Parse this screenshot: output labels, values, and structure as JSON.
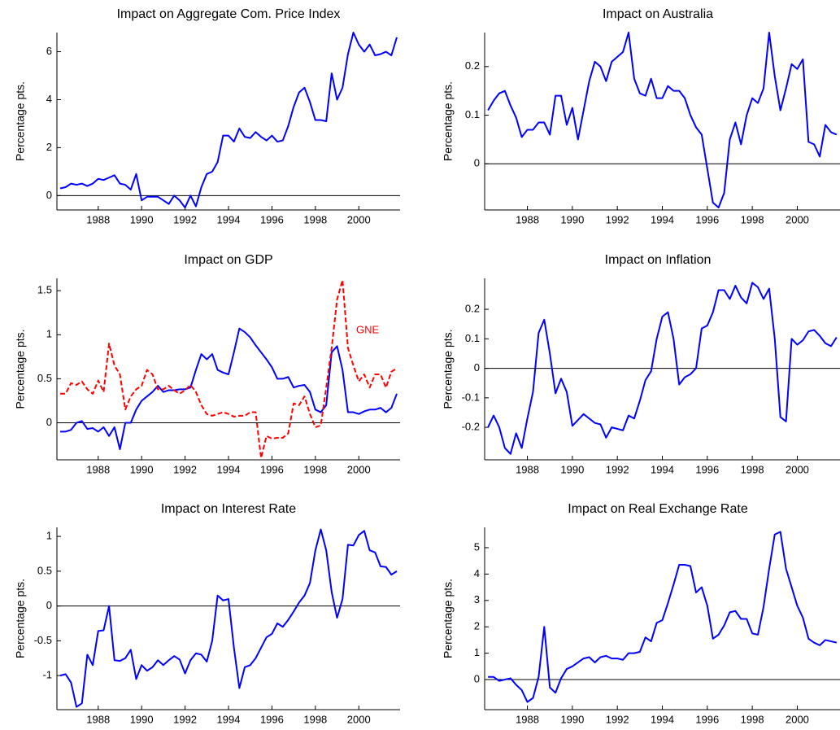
{
  "chart_data": [
    {
      "type": "line",
      "title": "Impact on Aggregate Com. Price Index",
      "ylabel": "Percentage pts.",
      "x": [
        1986.25,
        1986.5,
        1986.75,
        1987,
        1987.25,
        1987.5,
        1987.75,
        1988,
        1988.25,
        1988.5,
        1988.75,
        1989,
        1989.25,
        1989.5,
        1989.75,
        1990,
        1990.25,
        1990.5,
        1990.75,
        1991,
        1991.25,
        1991.5,
        1991.75,
        1992,
        1992.25,
        1992.5,
        1992.75,
        1993,
        1993.25,
        1993.5,
        1993.75,
        1994,
        1994.25,
        1994.5,
        1994.75,
        1995,
        1995.25,
        1995.5,
        1995.75,
        1996,
        1996.25,
        1996.5,
        1996.75,
        1997,
        1997.25,
        1997.5,
        1997.75,
        1998,
        1998.25,
        1998.5,
        1998.75,
        1999,
        1999.25,
        1999.5,
        1999.75,
        2000,
        2000.25,
        2000.5,
        2000.75,
        2001,
        2001.25,
        2001.5,
        2001.75
      ],
      "series": [
        {
          "color": "#0000ff",
          "line_style": "solid",
          "values": [
            0.3,
            0.35,
            0.5,
            0.45,
            0.5,
            0.4,
            0.5,
            0.7,
            0.65,
            0.75,
            0.85,
            0.5,
            0.45,
            0.25,
            0.9,
            -0.2,
            -0.05,
            -0.05,
            -0.05,
            -0.2,
            -0.35,
            0,
            -0.2,
            -0.5,
            0,
            -0.45,
            0.35,
            0.9,
            1.0,
            1.4,
            2.5,
            2.5,
            2.25,
            2.8,
            2.45,
            2.4,
            2.65,
            2.45,
            2.3,
            2.5,
            2.25,
            2.3,
            2.9,
            3.7,
            4.3,
            4.5,
            3.9,
            3.15,
            3.15,
            3.1,
            5.1,
            4.0,
            4.5,
            5.9,
            6.8,
            6.3,
            6.0,
            6.3,
            5.85,
            5.9,
            6.0,
            5.85,
            6.6
          ]
        }
      ],
      "xlim": [
        1986.1,
        2001.9
      ],
      "ylim": [
        -0.6,
        6.8
      ],
      "xticks": [
        1988,
        1990,
        1992,
        1994,
        1996,
        1998,
        2000
      ],
      "yticks": [
        0,
        2,
        4,
        6
      ]
    },
    {
      "type": "line",
      "title": "Impact on Australia",
      "ylabel": "Percentage pts.",
      "x": [
        1986.25,
        1986.5,
        1986.75,
        1987,
        1987.25,
        1987.5,
        1987.75,
        1988,
        1988.25,
        1988.5,
        1988.75,
        1989,
        1989.25,
        1989.5,
        1989.75,
        1990,
        1990.25,
        1990.5,
        1990.75,
        1991,
        1991.25,
        1991.5,
        1991.75,
        1992,
        1992.25,
        1992.5,
        1992.75,
        1993,
        1993.25,
        1993.5,
        1993.75,
        1994,
        1994.25,
        1994.5,
        1994.75,
        1995,
        1995.25,
        1995.5,
        1995.75,
        1996,
        1996.25,
        1996.5,
        1996.75,
        1997,
        1997.25,
        1997.5,
        1997.75,
        1998,
        1998.25,
        1998.5,
        1998.75,
        1999,
        1999.25,
        1999.5,
        1999.75,
        2000,
        2000.25,
        2000.5,
        2000.75,
        2001,
        2001.25,
        2001.5,
        2001.75
      ],
      "series": [
        {
          "color": "#0000ff",
          "line_style": "solid",
          "values": [
            0.11,
            0.13,
            0.145,
            0.15,
            0.12,
            0.095,
            0.055,
            0.07,
            0.07,
            0.085,
            0.085,
            0.06,
            0.14,
            0.14,
            0.08,
            0.115,
            0.05,
            0.11,
            0.17,
            0.21,
            0.2,
            0.17,
            0.21,
            0.22,
            0.23,
            0.27,
            0.175,
            0.145,
            0.14,
            0.175,
            0.135,
            0.135,
            0.16,
            0.15,
            0.15,
            0.135,
            0.1,
            0.075,
            0.06,
            -0.01,
            -0.08,
            -0.09,
            -0.06,
            0.05,
            0.085,
            0.04,
            0.1,
            0.135,
            0.125,
            0.155,
            0.27,
            0.18,
            0.11,
            0.155,
            0.205,
            0.195,
            0.215,
            0.045,
            0.04,
            0.015,
            0.08,
            0.065,
            0.06
          ]
        }
      ],
      "xlim": [
        1986.1,
        2001.9
      ],
      "ylim": [
        -0.095,
        0.27
      ],
      "xticks": [
        1988,
        1990,
        1992,
        1994,
        1996,
        1998,
        2000
      ],
      "yticks": [
        0,
        0.1,
        0.2
      ]
    },
    {
      "type": "line",
      "title": "Impact on GDP",
      "ylabel": "Percentage pts.",
      "x": [
        1986.25,
        1986.5,
        1986.75,
        1987,
        1987.25,
        1987.5,
        1987.75,
        1988,
        1988.25,
        1988.5,
        1988.75,
        1989,
        1989.25,
        1989.5,
        1989.75,
        1990,
        1990.25,
        1990.5,
        1990.75,
        1991,
        1991.25,
        1991.5,
        1991.75,
        1992,
        1992.25,
        1992.5,
        1992.75,
        1993,
        1993.25,
        1993.5,
        1993.75,
        1994,
        1994.25,
        1994.5,
        1994.75,
        1995,
        1995.25,
        1995.5,
        1995.75,
        1996,
        1996.25,
        1996.5,
        1996.75,
        1997,
        1997.25,
        1997.5,
        1997.75,
        1998,
        1998.25,
        1998.5,
        1998.75,
        1999,
        1999.25,
        1999.5,
        1999.75,
        2000,
        2000.25,
        2000.5,
        2000.75,
        2001,
        2001.25,
        2001.5,
        2001.75
      ],
      "series": [
        {
          "color": "#0000ff",
          "line_style": "solid",
          "values": [
            -0.1,
            -0.1,
            -0.08,
            0.0,
            0.02,
            -0.07,
            -0.06,
            -0.1,
            -0.05,
            -0.15,
            -0.05,
            -0.3,
            0.0,
            0.0,
            0.15,
            0.25,
            0.3,
            0.35,
            0.42,
            0.35,
            0.37,
            0.37,
            0.38,
            0.38,
            0.4,
            0.6,
            0.78,
            0.72,
            0.78,
            0.6,
            0.57,
            0.55,
            0.8,
            1.07,
            1.03,
            0.97,
            0.88,
            0.8,
            0.72,
            0.63,
            0.5,
            0.5,
            0.52,
            0.4,
            0.42,
            0.43,
            0.35,
            0.15,
            0.12,
            0.2,
            0.8,
            0.87,
            0.6,
            0.12,
            0.12,
            0.1,
            0.13,
            0.15,
            0.15,
            0.17,
            0.12,
            0.17,
            0.33
          ]
        },
        {
          "name": "GNE",
          "color": "#ff0000",
          "line_style": "dashed",
          "values": [
            0.33,
            0.33,
            0.45,
            0.43,
            0.47,
            0.38,
            0.33,
            0.48,
            0.35,
            0.9,
            0.65,
            0.55,
            0.15,
            0.3,
            0.38,
            0.42,
            0.6,
            0.55,
            0.38,
            0.38,
            0.42,
            0.37,
            0.33,
            0.37,
            0.43,
            0.35,
            0.2,
            0.1,
            0.08,
            0.1,
            0.12,
            0.1,
            0.07,
            0.08,
            0.08,
            0.12,
            0.12,
            -0.4,
            -0.15,
            -0.18,
            -0.17,
            -0.17,
            -0.12,
            0.22,
            0.2,
            0.3,
            0.1,
            -0.05,
            -0.03,
            0.4,
            0.85,
            1.4,
            1.62,
            0.85,
            0.65,
            0.47,
            0.55,
            0.4,
            0.55,
            0.55,
            0.4,
            0.58,
            0.62
          ]
        }
      ],
      "xlim": [
        1986.1,
        2001.9
      ],
      "ylim": [
        -0.42,
        1.64
      ],
      "xticks": [
        1988,
        1990,
        1992,
        1994,
        1996,
        1998,
        2000
      ],
      "yticks": [
        0,
        0.5,
        1,
        1.5
      ]
    },
    {
      "type": "line",
      "title": "Impact on Inflation",
      "ylabel": "Percentage pts.",
      "x": [
        1986.25,
        1986.5,
        1986.75,
        1987,
        1987.25,
        1987.5,
        1987.75,
        1988,
        1988.25,
        1988.5,
        1988.75,
        1989,
        1989.25,
        1989.5,
        1989.75,
        1990,
        1990.25,
        1990.5,
        1990.75,
        1991,
        1991.25,
        1991.5,
        1991.75,
        1992,
        1992.25,
        1992.5,
        1992.75,
        1993,
        1993.25,
        1993.5,
        1993.75,
        1994,
        1994.25,
        1994.5,
        1994.75,
        1995,
        1995.25,
        1995.5,
        1995.75,
        1996,
        1996.25,
        1996.5,
        1996.75,
        1997,
        1997.25,
        1997.5,
        1997.75,
        1998,
        1998.25,
        1998.5,
        1998.75,
        1999,
        1999.25,
        1999.5,
        1999.75,
        2000,
        2000.25,
        2000.5,
        2000.75,
        2001,
        2001.25,
        2001.5,
        2001.75
      ],
      "series": [
        {
          "color": "#0000ff",
          "line_style": "solid",
          "values": [
            -0.2,
            -0.16,
            -0.2,
            -0.27,
            -0.29,
            -0.22,
            -0.27,
            -0.17,
            -0.08,
            0.12,
            0.165,
            0.05,
            -0.085,
            -0.035,
            -0.08,
            -0.195,
            -0.175,
            -0.155,
            -0.17,
            -0.185,
            -0.19,
            -0.235,
            -0.2,
            -0.205,
            -0.21,
            -0.16,
            -0.17,
            -0.11,
            -0.04,
            -0.01,
            0.1,
            0.175,
            0.19,
            0.1,
            -0.055,
            -0.03,
            -0.02,
            0.0,
            0.135,
            0.145,
            0.19,
            0.265,
            0.265,
            0.235,
            0.28,
            0.24,
            0.22,
            0.29,
            0.275,
            0.235,
            0.27,
            0.1,
            -0.165,
            -0.18,
            0.1,
            0.08,
            0.095,
            0.125,
            0.13,
            0.11,
            0.085,
            0.075,
            0.105
          ]
        }
      ],
      "xlim": [
        1986.1,
        2001.9
      ],
      "ylim": [
        -0.31,
        0.305
      ],
      "xticks": [
        1988,
        1990,
        1992,
        1994,
        1996,
        1998,
        2000
      ],
      "yticks": [
        -0.2,
        -0.1,
        0,
        0.1,
        0.2
      ]
    },
    {
      "type": "line",
      "title": "Impact on Interest Rate",
      "ylabel": "Percentage pts.",
      "x": [
        1986.25,
        1986.5,
        1986.75,
        1987,
        1987.25,
        1987.5,
        1987.75,
        1988,
        1988.25,
        1988.5,
        1988.75,
        1989,
        1989.25,
        1989.5,
        1989.75,
        1990,
        1990.25,
        1990.5,
        1990.75,
        1991,
        1991.25,
        1991.5,
        1991.75,
        1992,
        1992.25,
        1992.5,
        1992.75,
        1993,
        1993.25,
        1993.5,
        1993.75,
        1994,
        1994.25,
        1994.5,
        1994.75,
        1995,
        1995.25,
        1995.5,
        1995.75,
        1996,
        1996.25,
        1996.5,
        1996.75,
        1997,
        1997.25,
        1997.5,
        1997.75,
        1998,
        1998.25,
        1998.5,
        1998.75,
        1999,
        1999.25,
        1999.5,
        1999.75,
        2000,
        2000.25,
        2000.5,
        2000.75,
        2001,
        2001.25,
        2001.5,
        2001.75
      ],
      "series": [
        {
          "color": "#0000ff",
          "line_style": "solid",
          "values": [
            -1.0,
            -0.98,
            -1.1,
            -1.45,
            -1.4,
            -0.7,
            -0.85,
            -0.36,
            -0.35,
            0.0,
            -0.78,
            -0.79,
            -0.75,
            -0.63,
            -1.05,
            -0.85,
            -0.93,
            -0.88,
            -0.78,
            -0.85,
            -0.78,
            -0.72,
            -0.77,
            -0.97,
            -0.78,
            -0.68,
            -0.7,
            -0.8,
            -0.5,
            0.15,
            0.08,
            0.1,
            -0.6,
            -1.18,
            -0.88,
            -0.85,
            -0.75,
            -0.6,
            -0.45,
            -0.4,
            -0.25,
            -0.3,
            -0.2,
            -0.08,
            0.05,
            0.15,
            0.33,
            0.8,
            1.1,
            0.8,
            0.2,
            -0.17,
            0.1,
            0.88,
            0.87,
            1.02,
            1.08,
            0.8,
            0.77,
            0.57,
            0.56,
            0.45,
            0.5
          ]
        }
      ],
      "xlim": [
        1986.1,
        2001.9
      ],
      "ylim": [
        -1.49,
        1.13
      ],
      "xticks": [
        1988,
        1990,
        1992,
        1994,
        1996,
        1998,
        2000
      ],
      "yticks": [
        -1,
        -0.5,
        0,
        0.5,
        1
      ]
    },
    {
      "type": "line",
      "title": "Impact on Real Exchange Rate",
      "ylabel": "Percentage pts.",
      "x": [
        1986.25,
        1986.5,
        1986.75,
        1987,
        1987.25,
        1987.5,
        1987.75,
        1988,
        1988.25,
        1988.5,
        1988.75,
        1989,
        1989.25,
        1989.5,
        1989.75,
        1990,
        1990.25,
        1990.5,
        1990.75,
        1991,
        1991.25,
        1991.5,
        1991.75,
        1992,
        1992.25,
        1992.5,
        1992.75,
        1993,
        1993.25,
        1993.5,
        1993.75,
        1994,
        1994.25,
        1994.5,
        1994.75,
        1995,
        1995.25,
        1995.5,
        1995.75,
        1996,
        1996.25,
        1996.5,
        1996.75,
        1997,
        1997.25,
        1997.5,
        1997.75,
        1998,
        1998.25,
        1998.5,
        1998.75,
        1999,
        1999.25,
        1999.5,
        1999.75,
        2000,
        2000.25,
        2000.5,
        2000.75,
        2001,
        2001.25,
        2001.5,
        2001.75
      ],
      "series": [
        {
          "color": "#0000ff",
          "line_style": "solid",
          "values": [
            0.1,
            0.1,
            -0.05,
            0.0,
            0.05,
            -0.2,
            -0.4,
            -0.85,
            -0.7,
            0.1,
            2.0,
            -0.3,
            -0.5,
            0.05,
            0.4,
            0.5,
            0.65,
            0.8,
            0.85,
            0.65,
            0.85,
            0.9,
            0.8,
            0.8,
            0.75,
            1.0,
            1.0,
            1.05,
            1.6,
            1.45,
            2.15,
            2.25,
            2.9,
            3.6,
            4.35,
            4.35,
            4.3,
            3.3,
            3.5,
            2.8,
            1.55,
            1.7,
            2.05,
            2.55,
            2.6,
            2.3,
            2.3,
            1.75,
            1.7,
            2.75,
            4.2,
            5.5,
            5.6,
            4.2,
            3.5,
            2.8,
            2.35,
            1.55,
            1.4,
            1.3,
            1.5,
            1.45,
            1.4
          ]
        }
      ],
      "xlim": [
        1986.1,
        2001.9
      ],
      "ylim": [
        -1.14,
        5.77
      ],
      "xticks": [
        1988,
        1990,
        1992,
        1994,
        1996,
        1998,
        2000
      ],
      "yticks": [
        0,
        1,
        2,
        3,
        4,
        5
      ]
    }
  ]
}
